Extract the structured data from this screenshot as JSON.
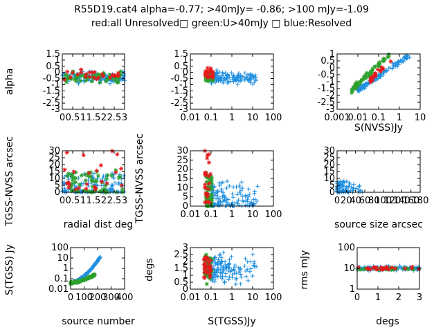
{
  "title": "R55D19.cat4 alpha=-0.77; >40mJy= -0.86; >100 mJy=-1.09",
  "subtitle": "red:all Unresolved□ green:U>40mJy □ blue:Resolved",
  "colors": {
    "all_unresolved": "#e41a1c",
    "unresolved_gt40": "#2ca02c",
    "resolved": "#1f8fe0",
    "axes": "#000000"
  },
  "chart_data": [
    {
      "id": "p1",
      "type": "scatter",
      "xlabel": "",
      "ylabel": "alpha",
      "xticks": [
        "0",
        "0.5",
        "1",
        "1.5",
        "2",
        "2.5",
        "3"
      ],
      "yticks": [
        "1.5",
        "1",
        "0.5",
        "0",
        "-0.5",
        "-1",
        "-1.5",
        "-2",
        "-2.5",
        "-3"
      ],
      "xlim": [
        0,
        3
      ],
      "ylim": [
        -3,
        1.5
      ],
      "xscale": "linear",
      "yscale": "linear",
      "gen": {
        "xmode": "linear",
        "ymode": "linear",
        "resolved": [
          [
            0,
            3
          ],
          [
            -1.1,
            0.25
          ],
          140
        ],
        "unresolved_gt40": [
          [
            0.1,
            2.9
          ],
          [
            -1.0,
            0.3
          ],
          60
        ],
        "all_unresolved": [
          [
            0.1,
            2.9
          ],
          [
            -0.9,
            0.45
          ],
          25
        ]
      }
    },
    {
      "id": "p2",
      "type": "scatter",
      "xlabel": "",
      "ylabel": "",
      "xticks": [
        "0.01",
        "0.1",
        "1",
        "10",
        "100"
      ],
      "yticks": [
        "1.5",
        "1",
        "0.5",
        "0",
        "-0.5",
        "-1",
        "-1.5",
        "-2",
        "-2.5",
        "-3"
      ],
      "xlim": [
        0.01,
        100
      ],
      "ylim": [
        -3,
        1.5
      ],
      "xscale": "log",
      "yscale": "linear",
      "gen": {
        "xmode": "log",
        "ymode": "linear",
        "resolved": [
          [
            -1.0,
            1.2
          ],
          [
            -1.1,
            0.25
          ],
          140
        ],
        "unresolved_gt40": [
          [
            -1.25,
            -0.9
          ],
          [
            -1.0,
            0.25
          ],
          60
        ],
        "all_unresolved": [
          [
            -1.3,
            -0.9
          ],
          [
            -0.8,
            0.5
          ],
          25
        ]
      }
    },
    {
      "id": "p3",
      "type": "scatter",
      "xlabel": "S(NVSS)Jy",
      "ylabel": "",
      "xticks": [
        "0.001",
        "0.01",
        "0.1",
        "1",
        "10"
      ],
      "yticks": [
        "1",
        "0.5",
        "0",
        "-0.5",
        "-1",
        "-1.5",
        "-2",
        "-2.5",
        "-3"
      ],
      "xlim": [
        0.001,
        10
      ],
      "ylim": [
        -3,
        1
      ],
      "xscale": "log",
      "yscale": "linear",
      "gen": {
        "xmode": "log",
        "ymode": "trend",
        "resolved": [
          [
            -2.0,
            0.5
          ],
          [
            -1.6,
            0.9
          ],
          140
        ],
        "unresolved_gt40": [
          [
            -2.3,
            -0.5
          ],
          [
            -1.6,
            0.9
          ],
          60
        ],
        "all_unresolved": [
          [
            -1.4,
            -0.3
          ],
          [
            -0.9,
            0.8
          ],
          25
        ]
      }
    },
    {
      "id": "p4",
      "type": "scatter",
      "xlabel": "radial dist deg",
      "ylabel": "TGSS-NVSS arcsec",
      "xticks": [
        "0",
        "0.5",
        "1",
        "1.5",
        "2",
        "2.5",
        "3"
      ],
      "yticks": [
        "0",
        "5",
        "10",
        "15",
        "20",
        "25",
        "30"
      ],
      "xlim": [
        0,
        3
      ],
      "ylim": [
        0,
        30
      ],
      "xscale": "linear",
      "yscale": "linear",
      "gen": {
        "xmode": "linear",
        "ymode": "skew",
        "resolved": [
          [
            0,
            3
          ],
          [
            0,
            14
          ],
          140
        ],
        "unresolved_gt40": [
          [
            0.1,
            2.9
          ],
          [
            0,
            16
          ],
          60
        ],
        "all_unresolved": [
          [
            0.1,
            2.9
          ],
          [
            2,
            30
          ],
          25
        ]
      }
    },
    {
      "id": "p5",
      "type": "scatter",
      "xlabel": "",
      "ylabel": "TGSS-NVSS arcsec",
      "xticks": [
        "0.01",
        "0.1",
        "1",
        "10",
        "100"
      ],
      "yticks": [
        "0",
        "5",
        "10",
        "15",
        "20",
        "25",
        "30"
      ],
      "xlim": [
        0.01,
        100
      ],
      "ylim": [
        0,
        30
      ],
      "xscale": "log",
      "yscale": "linear",
      "gen": {
        "xmode": "log",
        "ymode": "skew",
        "resolved": [
          [
            -1.0,
            1.3
          ],
          [
            0,
            14
          ],
          140
        ],
        "unresolved_gt40": [
          [
            -1.25,
            -0.95
          ],
          [
            0,
            18
          ],
          60
        ],
        "all_unresolved": [
          [
            -1.3,
            -1.0
          ],
          [
            2,
            30
          ],
          25
        ]
      }
    },
    {
      "id": "p6",
      "type": "scatter",
      "xlabel": "source size arcsec",
      "ylabel": "",
      "xticks": [
        "0",
        "20",
        "40",
        "60",
        "80",
        "100",
        "120",
        "140",
        "160",
        "180"
      ],
      "yticks": [
        "0",
        "5",
        "10",
        "15",
        "20",
        "25",
        "30"
      ],
      "xlim": [
        0,
        180
      ],
      "ylim": [
        0,
        30
      ],
      "xscale": "linear",
      "yscale": "linear",
      "gen": {
        "xmode": "skew",
        "ymode": "skew",
        "resolved": [
          [
            0,
            60
          ],
          [
            0,
            8
          ],
          90
        ],
        "unresolved_gt40": [
          [
            0,
            0
          ],
          [
            0,
            0
          ],
          0
        ],
        "all_unresolved": [
          [
            0,
            0
          ],
          [
            0,
            0
          ],
          0
        ]
      }
    },
    {
      "id": "p7",
      "type": "scatter",
      "xlabel": "source number",
      "ylabel": "S(TGSS) Jy",
      "xticks": [
        "0",
        "100",
        "200",
        "300",
        "400"
      ],
      "yticks": [
        "100",
        "10",
        "1",
        "0.1",
        "0.01"
      ],
      "xlim": [
        0,
        400
      ],
      "ylim": [
        0.01,
        100
      ],
      "xscale": "linear",
      "yscale": "log",
      "gen": {
        "xmode": "linear",
        "ymode": "rise",
        "resolved": [
          [
            20,
            220
          ],
          [
            -1.3,
            1.1
          ],
          140
        ],
        "unresolved_gt40": [
          [
            0,
            180
          ],
          [
            -1.4,
            -0.6
          ],
          80
        ],
        "all_unresolved": [
          [
            0,
            0
          ],
          [
            0,
            0
          ],
          0
        ]
      }
    },
    {
      "id": "p8",
      "type": "scatter",
      "xlabel": "S(TGSS)Jy",
      "ylabel": "degs",
      "xticks": [
        "0.01",
        "0.1",
        "1",
        "10",
        "100"
      ],
      "yticks": [
        "0",
        "0.5",
        "1",
        "1.5",
        "2",
        "2.5",
        "3"
      ],
      "xlim": [
        0.01,
        100
      ],
      "ylim": [
        0,
        3
      ],
      "xscale": "log",
      "yscale": "linear",
      "gen": {
        "xmode": "log",
        "ymode": "linear",
        "resolved": [
          [
            -1.0,
            1.2
          ],
          [
            0,
            3
          ],
          140
        ],
        "unresolved_gt40": [
          [
            -1.3,
            -0.95
          ],
          [
            0,
            3
          ],
          70
        ],
        "all_unresolved": [
          [
            -1.35,
            -1.0
          ],
          [
            0,
            3
          ],
          30
        ]
      }
    },
    {
      "id": "p9",
      "type": "scatter",
      "xlabel": "degs",
      "ylabel": "rms mJy",
      "xticks": [
        "0",
        "1",
        "2",
        "3"
      ],
      "yticks": [
        "100",
        "10",
        "1"
      ],
      "xlim": [
        0,
        3
      ],
      "ylim": [
        1,
        100
      ],
      "xscale": "linear",
      "yscale": "log",
      "gen": {
        "xmode": "linear",
        "ymode": "band",
        "resolved": [
          [
            0,
            3
          ],
          [
            0.85,
            1.15
          ],
          140
        ],
        "unresolved_gt40": [
          [
            0,
            3
          ],
          [
            0.9,
            1.05
          ],
          30
        ],
        "all_unresolved": [
          [
            0,
            3
          ],
          [
            0.85,
            1.15
          ],
          30
        ]
      }
    }
  ]
}
